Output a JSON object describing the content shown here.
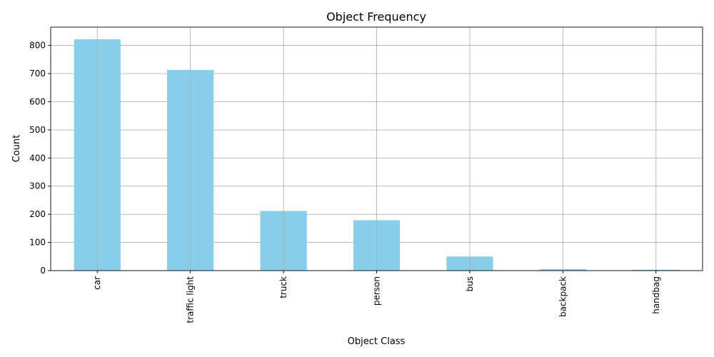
{
  "chart_data": {
    "type": "bar",
    "title": "Object Frequency",
    "xlabel": "Object Class",
    "ylabel": "Count",
    "categories": [
      "car",
      "traffic light",
      "truck",
      "person",
      "bus",
      "backpack",
      "handbag"
    ],
    "values": [
      822,
      713,
      212,
      179,
      50,
      5,
      3
    ],
    "ylim": [
      0,
      865
    ],
    "yticks": [
      0,
      100,
      200,
      300,
      400,
      500,
      600,
      700,
      800
    ],
    "grid": true,
    "bar_color": "#87ceeb"
  }
}
